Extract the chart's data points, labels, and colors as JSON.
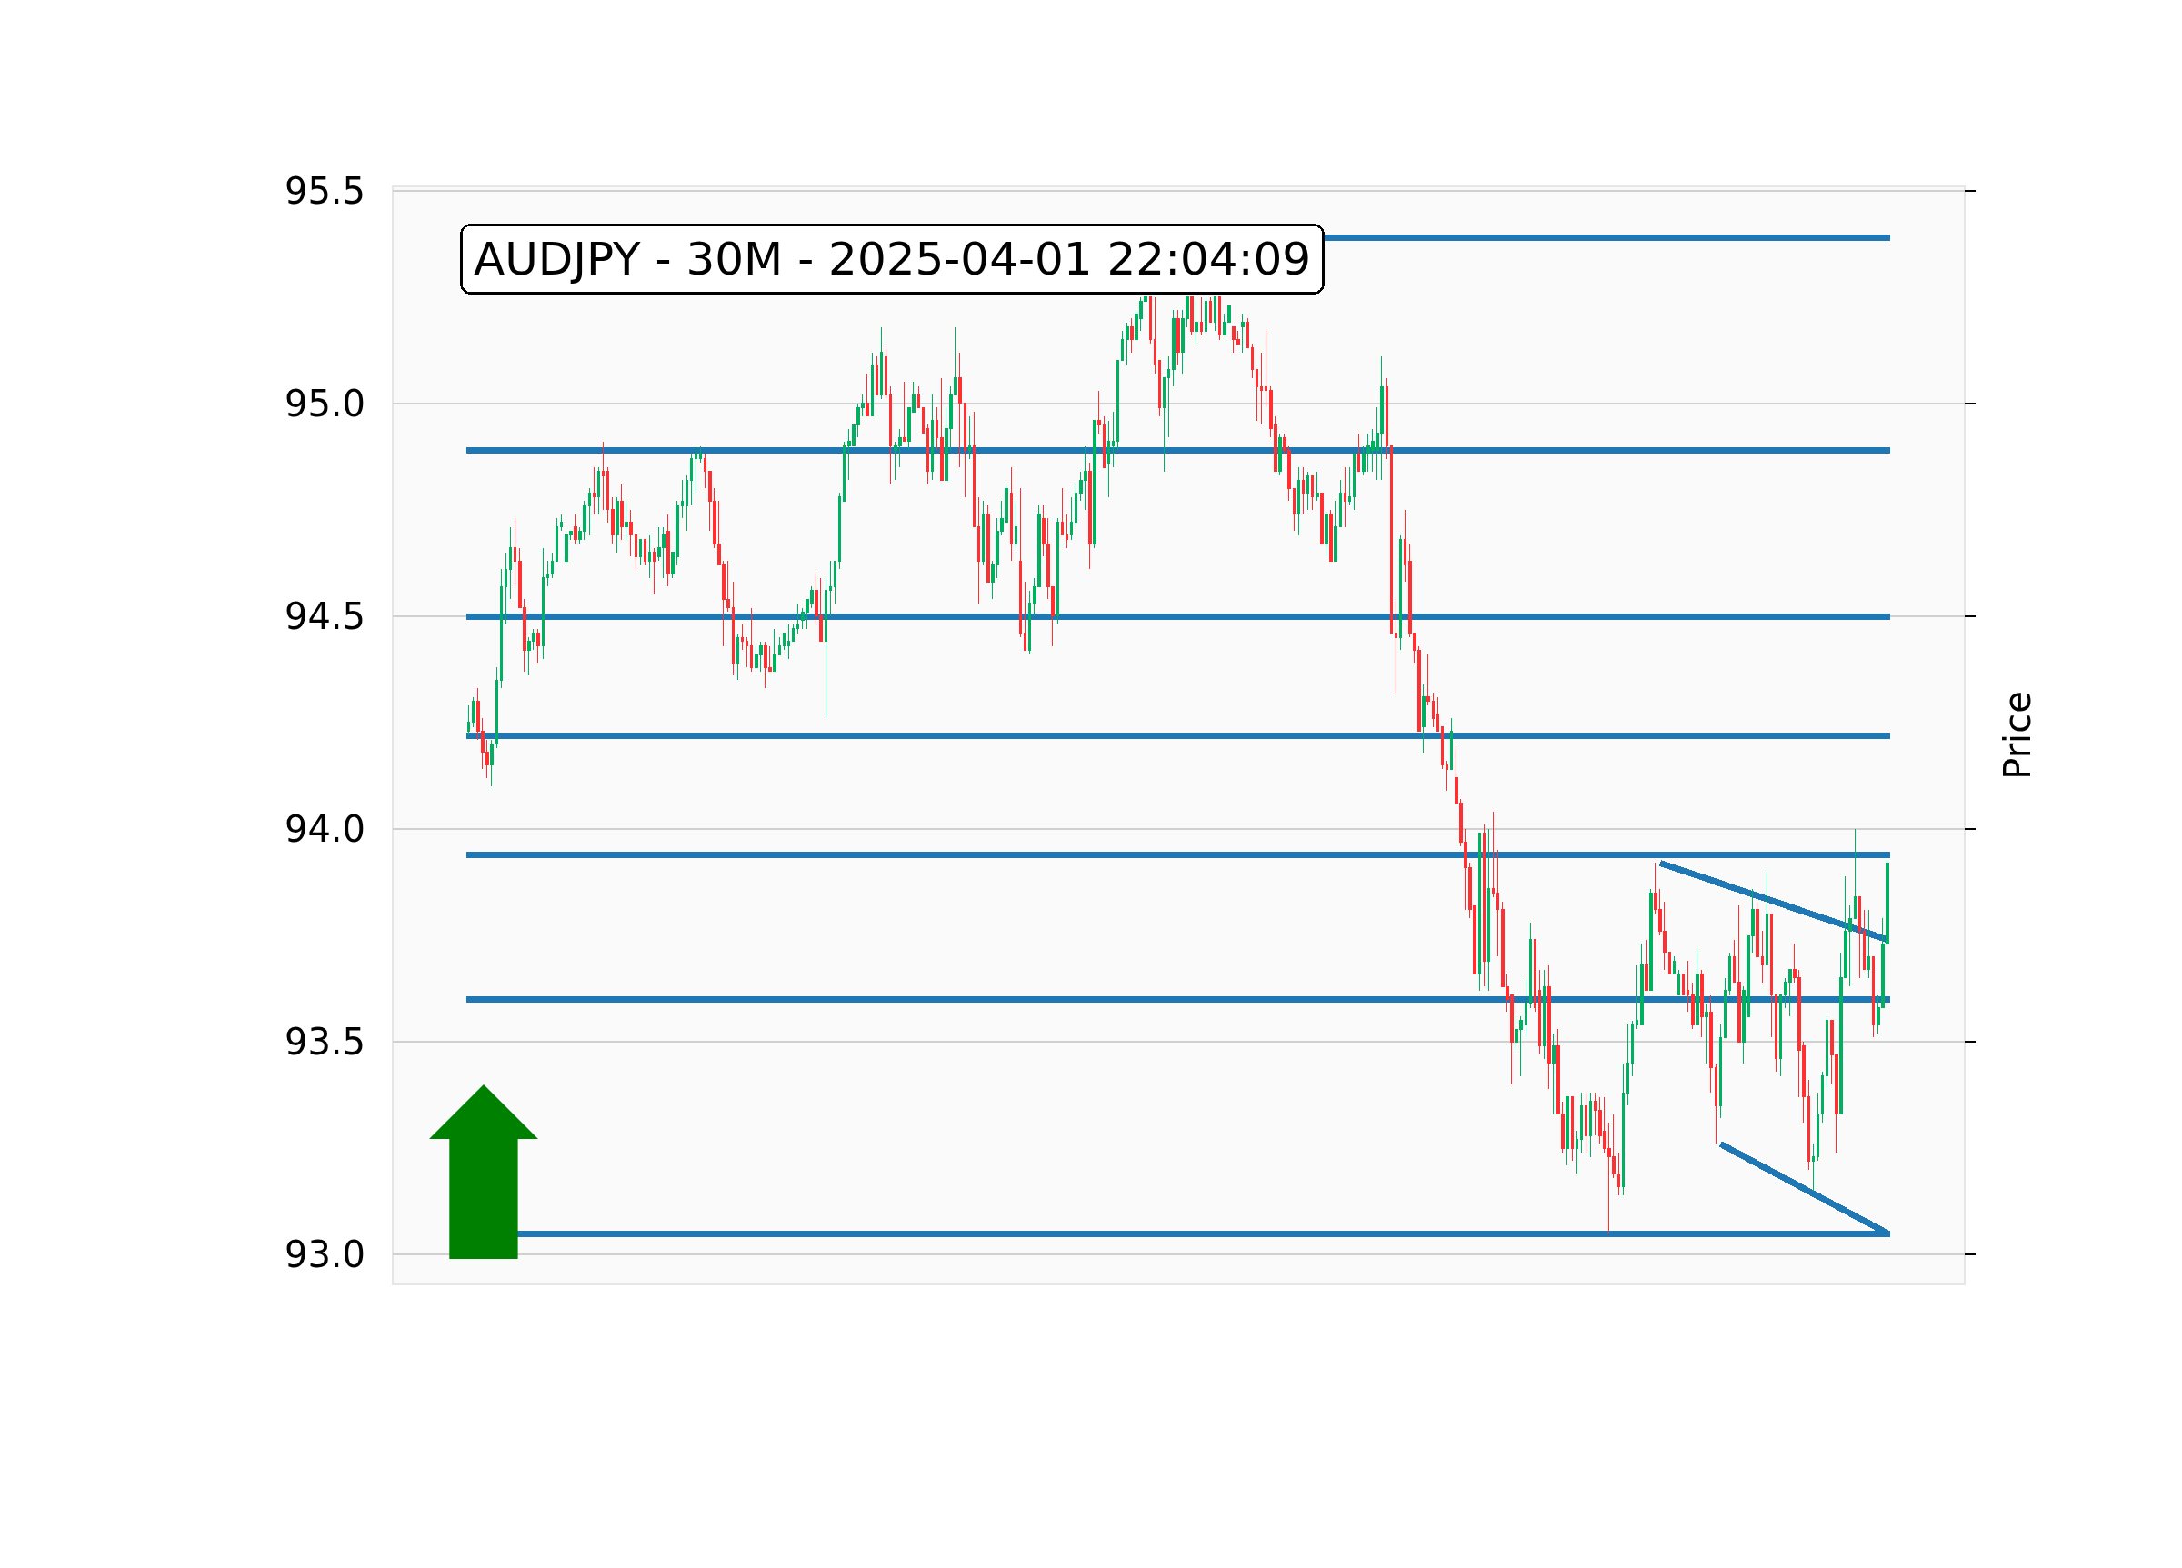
{
  "chart_data": {
    "type": "candlestick",
    "title": "AUDJPY - 30M - 2025-04-01 22:04:09",
    "ylabel": "Price",
    "categories": [
      null,
      null,
      null,
      null,
      null,
      null,
      null,
      null,
      null,
      null,
      null,
      null,
      null,
      null,
      null,
      null,
      null,
      null,
      null,
      null,
      null,
      null,
      null,
      null,
      null,
      null,
      null,
      null,
      null,
      null,
      null,
      null,
      null,
      null,
      null,
      null,
      null,
      null,
      null,
      null,
      null,
      null,
      null,
      null,
      null,
      null,
      null,
      null,
      null,
      null,
      null,
      null,
      null,
      null,
      null,
      null,
      null,
      null,
      null,
      null,
      null,
      null,
      null,
      null,
      null,
      null,
      null,
      null,
      null,
      null,
      null,
      null,
      null,
      null,
      null,
      null,
      null,
      null,
      null,
      null,
      null,
      null,
      null,
      null,
      null,
      null,
      null,
      null,
      null,
      null,
      null,
      null,
      null,
      null,
      null,
      null,
      null,
      null,
      null,
      null,
      null,
      null,
      null,
      null,
      null,
      null,
      null,
      null,
      null,
      null,
      null,
      null,
      null,
      null,
      null,
      null,
      null,
      null,
      null,
      null,
      null,
      null,
      null,
      null,
      null,
      null,
      null,
      null,
      null,
      null,
      null,
      null,
      null,
      null,
      null,
      null,
      null,
      null,
      null,
      null,
      null,
      null,
      null,
      null,
      null,
      null,
      null,
      null,
      null,
      null,
      null,
      null,
      null,
      null,
      null,
      null,
      null,
      null,
      null,
      null,
      null,
      null,
      null,
      null,
      null,
      null,
      null,
      null,
      null,
      null,
      null,
      null,
      null,
      null,
      null,
      null,
      null,
      null,
      null,
      null,
      null,
      null,
      null,
      null,
      null,
      null,
      null,
      null,
      null,
      null,
      null,
      null,
      null,
      null,
      null,
      null,
      null,
      null,
      null,
      null,
      null,
      null,
      null,
      null,
      null,
      null,
      null,
      null,
      null,
      null,
      null,
      null,
      null,
      null,
      null,
      null,
      null,
      null,
      null,
      null,
      null,
      null,
      null,
      null,
      null,
      null,
      null,
      null,
      null,
      null,
      null,
      null,
      null,
      null,
      null,
      null,
      null,
      null,
      null,
      null,
      null,
      null,
      null,
      null,
      null,
      null,
      null,
      null,
      null,
      null,
      null,
      null,
      null,
      null,
      null,
      null,
      null,
      null,
      null,
      null,
      null,
      null,
      null,
      null,
      null,
      null,
      null,
      null,
      null,
      null,
      null,
      null,
      null,
      null,
      null,
      null,
      null,
      null,
      null,
      null,
      null,
      null,
      null,
      null,
      null,
      null,
      null,
      null,
      null,
      null,
      null,
      null,
      null,
      null,
      null,
      null,
      null,
      null,
      null,
      null,
      null,
      null,
      null,
      null,
      null,
      null,
      null
    ],
    "ohlc": [
      [
        94.23,
        94.29,
        94.22,
        94.25
      ],
      [
        94.25,
        94.31,
        94.24,
        94.3
      ],
      [
        94.3,
        94.33,
        94.21,
        94.23
      ],
      [
        94.23,
        94.26,
        94.14,
        94.18
      ],
      [
        94.18,
        94.21,
        94.12,
        94.15
      ],
      [
        94.15,
        94.21,
        94.1,
        94.2
      ],
      [
        94.2,
        94.38,
        94.19,
        94.35
      ],
      [
        94.35,
        94.61,
        94.33,
        94.57
      ],
      [
        94.57,
        94.65,
        94.48,
        94.61
      ],
      [
        94.61,
        94.71,
        94.54,
        94.66
      ],
      [
        94.66,
        94.73,
        94.57,
        94.63
      ],
      [
        94.63,
        94.66,
        94.52,
        94.52
      ],
      [
        94.52,
        94.54,
        94.37,
        94.42
      ],
      [
        94.42,
        94.45,
        94.36,
        94.44
      ],
      [
        94.44,
        94.47,
        94.42,
        94.46
      ],
      [
        94.46,
        94.47,
        94.39,
        94.43
      ],
      [
        94.43,
        94.66,
        94.4,
        94.59
      ],
      [
        94.59,
        94.63,
        94.57,
        94.6
      ],
      [
        94.6,
        94.65,
        94.59,
        94.63
      ],
      [
        94.63,
        94.73,
        94.63,
        94.71
      ],
      [
        94.71,
        94.74,
        94.7,
        94.72
      ],
      [
        94.63,
        94.7,
        94.62,
        94.69
      ],
      [
        94.69,
        94.7,
        94.68,
        94.7
      ],
      [
        94.71,
        94.74,
        94.67,
        94.68
      ],
      [
        94.68,
        94.71,
        94.67,
        94.7
      ],
      [
        94.7,
        94.77,
        94.68,
        94.76
      ],
      [
        94.76,
        94.8,
        94.69,
        94.79
      ],
      [
        94.79,
        94.85,
        94.74,
        94.78
      ],
      [
        94.78,
        94.85,
        94.74,
        94.84
      ],
      [
        94.84,
        94.91,
        94.75,
        94.83
      ],
      [
        94.84,
        94.85,
        94.72,
        94.75
      ],
      [
        94.75,
        94.78,
        94.67,
        94.69
      ],
      [
        94.69,
        94.78,
        94.65,
        94.77
      ],
      [
        94.77,
        94.81,
        94.68,
        94.71
      ],
      [
        94.71,
        94.77,
        94.68,
        94.72
      ],
      [
        94.72,
        94.75,
        94.64,
        94.69
      ],
      [
        94.69,
        94.69,
        94.61,
        94.64
      ],
      [
        94.64,
        94.68,
        94.62,
        94.68
      ],
      [
        94.68,
        94.68,
        94.62,
        94.63
      ],
      [
        94.63,
        94.69,
        94.59,
        94.65
      ],
      [
        94.65,
        94.66,
        94.55,
        94.63
      ],
      [
        94.64,
        94.71,
        94.63,
        94.66
      ],
      [
        94.66,
        94.71,
        94.59,
        94.69
      ],
      [
        94.7,
        94.74,
        94.57,
        94.6
      ],
      [
        94.6,
        94.65,
        94.59,
        94.65
      ],
      [
        94.64,
        94.77,
        94.62,
        94.76
      ],
      [
        94.76,
        94.82,
        94.73,
        94.77
      ],
      [
        94.76,
        94.83,
        94.7,
        94.82
      ],
      [
        94.82,
        94.88,
        94.76,
        94.87
      ],
      [
        94.87,
        94.9,
        94.79,
        94.88
      ],
      [
        94.87,
        94.9,
        94.86,
        94.88
      ],
      [
        94.87,
        94.88,
        94.8,
        94.84
      ],
      [
        94.84,
        94.84,
        94.7,
        94.77
      ],
      [
        94.77,
        94.8,
        94.66,
        94.67
      ],
      [
        94.67,
        94.77,
        94.62,
        94.62
      ],
      [
        94.62,
        94.63,
        94.43,
        94.54
      ],
      [
        94.54,
        94.63,
        94.51,
        94.52
      ],
      [
        94.52,
        94.58,
        94.36,
        94.39
      ],
      [
        94.39,
        94.46,
        94.35,
        94.45
      ],
      [
        94.45,
        94.48,
        94.42,
        94.44
      ],
      [
        94.44,
        94.45,
        94.38,
        94.43
      ],
      [
        94.43,
        94.52,
        94.37,
        94.38
      ],
      [
        94.38,
        94.43,
        94.38,
        94.41
      ],
      [
        94.41,
        94.44,
        94.37,
        94.43
      ],
      [
        94.43,
        94.44,
        94.33,
        94.38
      ],
      [
        94.38,
        94.43,
        94.37,
        94.37
      ],
      [
        94.37,
        94.47,
        94.37,
        94.41
      ],
      [
        94.41,
        94.45,
        94.41,
        94.43
      ],
      [
        94.43,
        94.46,
        94.42,
        94.46
      ],
      [
        94.43,
        94.48,
        94.4,
        94.44
      ],
      [
        94.44,
        94.48,
        94.44,
        94.47
      ],
      [
        94.47,
        94.53,
        94.46,
        94.48
      ],
      [
        94.49,
        94.52,
        94.47,
        94.51
      ],
      [
        94.51,
        94.54,
        94.47,
        94.54
      ],
      [
        94.53,
        94.57,
        94.52,
        94.56
      ],
      [
        94.56,
        94.6,
        94.48,
        94.5
      ],
      [
        94.5,
        94.59,
        94.44,
        94.44
      ],
      [
        94.44,
        94.59,
        94.26,
        94.56
      ],
      [
        94.56,
        94.63,
        94.5,
        94.57
      ],
      [
        94.57,
        94.63,
        94.53,
        94.63
      ],
      [
        94.63,
        94.79,
        94.61,
        94.78
      ],
      [
        94.77,
        94.91,
        94.77,
        94.9
      ],
      [
        94.9,
        94.94,
        94.82,
        94.91
      ],
      [
        94.9,
        94.95,
        94.9,
        94.95
      ],
      [
        94.95,
        95.0,
        94.92,
        94.99
      ],
      [
        94.99,
        95.02,
        94.97,
        95.0
      ],
      [
        95.0,
        95.07,
        94.97,
        94.97
      ],
      [
        94.97,
        95.12,
        94.97,
        95.09
      ],
      [
        95.09,
        95.11,
        95.02,
        95.02
      ],
      [
        95.02,
        95.18,
        95.01,
        95.12
      ],
      [
        95.11,
        95.13,
        95.01,
        95.02
      ],
      [
        95.02,
        95.04,
        94.81,
        94.9
      ],
      [
        94.89,
        94.91,
        94.82,
        94.9
      ],
      [
        94.9,
        94.94,
        94.85,
        94.92
      ],
      [
        94.92,
        95.05,
        94.91,
        94.91
      ],
      [
        94.91,
        94.99,
        94.89,
        94.99
      ],
      [
        94.98,
        95.05,
        94.98,
        95.02
      ],
      [
        95.02,
        95.04,
        94.99,
        94.99
      ],
      [
        94.99,
        94.99,
        94.93,
        94.93
      ],
      [
        94.94,
        94.95,
        94.81,
        94.84
      ],
      [
        94.84,
        95.02,
        94.82,
        94.96
      ],
      [
        94.96,
        94.99,
        94.89,
        94.92
      ],
      [
        94.92,
        95.06,
        94.82,
        94.82
      ],
      [
        94.82,
        94.99,
        94.82,
        94.94
      ],
      [
        94.94,
        95.04,
        94.89,
        95.02
      ],
      [
        95.02,
        95.18,
        95.02,
        95.06
      ],
      [
        95.06,
        95.12,
        94.85,
        95.0
      ],
      [
        95.0,
        95.0,
        94.78,
        94.89
      ],
      [
        94.89,
        94.97,
        94.87,
        94.9
      ],
      [
        94.9,
        94.98,
        94.71,
        94.71
      ],
      [
        94.71,
        94.78,
        94.53,
        94.63
      ],
      [
        94.63,
        94.77,
        94.62,
        94.74
      ],
      [
        94.74,
        94.76,
        94.58,
        94.58
      ],
      [
        94.58,
        94.63,
        94.54,
        94.62
      ],
      [
        94.62,
        94.73,
        94.59,
        94.7
      ],
      [
        94.7,
        94.77,
        94.69,
        94.73
      ],
      [
        94.72,
        94.81,
        94.72,
        94.8
      ],
      [
        94.79,
        94.85,
        94.63,
        94.67
      ],
      [
        94.67,
        94.77,
        94.66,
        94.71
      ],
      [
        94.63,
        94.8,
        94.45,
        94.46
      ],
      [
        94.46,
        94.58,
        94.42,
        94.42
      ],
      [
        94.42,
        94.56,
        94.41,
        94.53
      ],
      [
        94.53,
        94.59,
        94.5,
        94.57
      ],
      [
        94.57,
        94.76,
        94.57,
        94.74
      ],
      [
        94.73,
        94.76,
        94.64,
        94.67
      ],
      [
        94.67,
        94.73,
        94.54,
        94.57
      ],
      [
        94.57,
        94.57,
        94.43,
        94.5
      ],
      [
        94.5,
        94.73,
        94.48,
        94.72
      ],
      [
        94.72,
        94.8,
        94.69,
        94.69
      ],
      [
        94.69,
        94.74,
        94.66,
        94.68
      ],
      [
        94.69,
        94.78,
        94.68,
        94.72
      ],
      [
        94.72,
        94.81,
        94.71,
        94.79
      ],
      [
        94.79,
        94.84,
        94.77,
        94.82
      ],
      [
        94.82,
        94.9,
        94.75,
        94.84
      ],
      [
        94.84,
        94.86,
        94.61,
        94.67
      ],
      [
        94.67,
        94.96,
        94.66,
        94.96
      ],
      [
        94.96,
        95.03,
        94.93,
        94.95
      ],
      [
        94.95,
        94.97,
        94.85,
        94.85
      ],
      [
        94.86,
        94.96,
        94.78,
        94.91
      ],
      [
        94.9,
        94.98,
        94.85,
        94.91
      ],
      [
        94.91,
        95.1,
        94.89,
        95.1
      ],
      [
        95.1,
        95.17,
        95.1,
        95.15
      ],
      [
        95.15,
        95.19,
        95.09,
        95.18
      ],
      [
        95.18,
        95.2,
        95.12,
        95.15
      ],
      [
        95.15,
        95.22,
        95.15,
        95.21
      ],
      [
        95.2,
        95.25,
        95.17,
        95.24
      ],
      [
        95.24,
        95.25,
        95.24,
        95.25
      ],
      [
        95.25,
        95.25,
        95.14,
        95.15
      ],
      [
        95.15,
        95.25,
        95.07,
        95.09
      ],
      [
        95.1,
        95.1,
        94.97,
        94.99
      ],
      [
        94.99,
        95.06,
        94.84,
        95.06
      ],
      [
        95.06,
        95.11,
        94.92,
        95.08
      ],
      [
        95.08,
        95.22,
        95.04,
        95.2
      ],
      [
        95.2,
        95.22,
        95.09,
        95.12
      ],
      [
        95.12,
        95.22,
        95.07,
        95.2
      ],
      [
        95.2,
        95.25,
        95.18,
        95.25
      ],
      [
        95.25,
        95.25,
        95.16,
        95.17
      ],
      [
        95.17,
        95.25,
        95.14,
        95.19
      ],
      [
        95.19,
        95.25,
        95.16,
        95.17
      ],
      [
        95.17,
        95.25,
        95.17,
        95.24
      ],
      [
        95.24,
        95.25,
        95.19,
        95.19
      ],
      [
        95.19,
        95.25,
        95.17,
        95.25
      ],
      [
        95.25,
        95.25,
        95.15,
        95.16
      ],
      [
        95.16,
        95.21,
        95.16,
        95.19
      ],
      [
        95.19,
        95.23,
        95.19,
        95.23
      ],
      [
        95.18,
        95.18,
        95.12,
        95.15
      ],
      [
        95.15,
        95.17,
        95.14,
        95.14
      ],
      [
        95.18,
        95.21,
        95.12,
        95.19
      ],
      [
        95.19,
        95.2,
        95.13,
        95.13
      ],
      [
        95.13,
        95.14,
        95.06,
        95.08
      ],
      [
        95.08,
        95.08,
        94.96,
        95.04
      ],
      [
        95.04,
        95.12,
        94.95,
        95.03
      ],
      [
        95.04,
        95.17,
        94.99,
        95.03
      ],
      [
        95.03,
        95.04,
        94.92,
        94.94
      ],
      [
        94.95,
        94.97,
        94.84,
        94.84
      ],
      [
        94.84,
        94.93,
        94.83,
        94.92
      ],
      [
        94.92,
        94.93,
        94.88,
        94.89
      ],
      [
        94.89,
        94.9,
        94.77,
        94.8
      ],
      [
        94.8,
        94.8,
        94.7,
        94.74
      ],
      [
        94.74,
        94.85,
        94.69,
        94.82
      ],
      [
        94.82,
        94.85,
        94.74,
        94.79
      ],
      [
        94.79,
        94.84,
        94.75,
        94.83
      ],
      [
        94.83,
        94.83,
        94.75,
        94.78
      ],
      [
        94.78,
        94.84,
        94.77,
        94.79
      ],
      [
        94.79,
        94.79,
        94.67,
        94.67
      ],
      [
        94.67,
        94.74,
        94.64,
        94.74
      ],
      [
        94.74,
        94.75,
        94.63,
        94.63
      ],
      [
        94.63,
        94.77,
        94.63,
        94.71
      ],
      [
        94.71,
        94.82,
        94.71,
        94.79
      ],
      [
        94.79,
        94.85,
        94.71,
        94.77
      ],
      [
        94.77,
        94.85,
        94.76,
        94.78
      ],
      [
        94.78,
        94.88,
        94.75,
        94.88
      ],
      [
        94.88,
        94.93,
        94.84,
        94.84
      ],
      [
        94.84,
        94.9,
        94.83,
        94.88
      ],
      [
        94.88,
        94.93,
        94.84,
        94.9
      ],
      [
        94.89,
        94.94,
        94.84,
        94.91
      ],
      [
        94.89,
        94.99,
        94.82,
        94.93
      ],
      [
        94.93,
        95.11,
        94.82,
        95.04
      ],
      [
        95.04,
        95.06,
        94.87,
        94.9
      ],
      [
        94.9,
        94.9,
        94.46,
        94.46
      ],
      [
        94.46,
        94.54,
        94.32,
        94.45
      ],
      [
        94.45,
        94.69,
        94.42,
        94.68
      ],
      [
        94.68,
        94.75,
        94.58,
        94.62
      ],
      [
        94.63,
        94.67,
        94.45,
        94.46
      ],
      [
        94.46,
        94.46,
        94.39,
        94.42
      ],
      [
        94.42,
        94.43,
        94.23,
        94.23
      ],
      [
        94.24,
        94.34,
        94.18,
        94.31
      ],
      [
        94.31,
        94.41,
        94.29,
        94.3
      ],
      [
        94.3,
        94.32,
        94.24,
        94.26
      ],
      [
        94.27,
        94.31,
        94.23,
        94.23
      ],
      [
        94.24,
        94.24,
        94.14,
        94.15
      ],
      [
        94.15,
        94.16,
        94.09,
        94.14
      ],
      [
        94.14,
        94.26,
        94.14,
        94.23
      ],
      [
        94.12,
        94.19,
        94.06,
        94.06
      ],
      [
        94.06,
        94.07,
        93.96,
        93.97
      ],
      [
        93.97,
        94.0,
        93.81,
        93.91
      ],
      [
        93.91,
        93.92,
        93.79,
        93.81
      ],
      [
        93.82,
        93.82,
        93.66,
        93.66
      ],
      [
        93.66,
        93.99,
        93.62,
        93.99
      ],
      [
        93.99,
        94.01,
        93.63,
        93.69
      ],
      [
        93.69,
        94.0,
        93.62,
        93.86
      ],
      [
        93.86,
        94.04,
        93.84,
        93.85
      ],
      [
        93.85,
        93.95,
        93.7,
        93.81
      ],
      [
        93.81,
        93.83,
        93.63,
        93.63
      ],
      [
        93.63,
        93.66,
        93.57,
        93.6
      ],
      [
        93.61,
        93.61,
        93.4,
        93.5
      ],
      [
        93.5,
        93.56,
        93.48,
        93.53
      ],
      [
        93.53,
        93.56,
        93.42,
        93.55
      ],
      [
        93.54,
        93.65,
        93.51,
        93.59
      ],
      [
        93.59,
        93.78,
        93.58,
        93.74
      ],
      [
        93.74,
        93.74,
        93.57,
        93.58
      ],
      [
        93.62,
        93.67,
        93.47,
        93.49
      ],
      [
        93.49,
        93.67,
        93.46,
        93.63
      ],
      [
        93.63,
        93.68,
        93.39,
        93.45
      ],
      [
        93.45,
        93.52,
        93.33,
        93.49
      ],
      [
        93.49,
        93.53,
        93.33,
        93.33
      ],
      [
        93.33,
        93.36,
        93.24,
        93.25
      ],
      [
        93.25,
        93.37,
        93.21,
        93.37
      ],
      [
        93.37,
        93.37,
        93.22,
        93.25
      ],
      [
        93.25,
        93.29,
        93.19,
        93.27
      ],
      [
        93.27,
        93.38,
        93.24,
        93.35
      ],
      [
        93.35,
        93.38,
        93.24,
        93.28
      ],
      [
        93.28,
        93.38,
        93.23,
        93.36
      ],
      [
        93.36,
        93.38,
        93.28,
        93.34
      ],
      [
        93.34,
        93.37,
        93.26,
        93.28
      ],
      [
        93.29,
        93.37,
        93.24,
        93.25
      ],
      [
        93.25,
        93.31,
        93.05,
        93.23
      ],
      [
        93.23,
        93.33,
        93.18,
        93.19
      ],
      [
        93.19,
        93.24,
        93.14,
        93.16
      ],
      [
        93.16,
        93.45,
        93.14,
        93.38
      ],
      [
        93.38,
        93.54,
        93.35,
        93.45
      ],
      [
        93.45,
        93.55,
        93.42,
        93.54
      ],
      [
        93.54,
        93.68,
        93.53,
        93.55
      ],
      [
        93.54,
        93.73,
        93.54,
        93.68
      ],
      [
        93.68,
        93.74,
        93.62,
        93.62
      ],
      [
        93.62,
        93.86,
        93.62,
        93.85
      ],
      [
        93.85,
        93.92,
        93.8,
        93.81
      ],
      [
        93.81,
        93.86,
        93.75,
        93.76
      ],
      [
        93.76,
        93.83,
        93.67,
        93.71
      ],
      [
        93.71,
        93.71,
        93.66,
        93.66
      ],
      [
        93.66,
        93.7,
        93.66,
        93.69
      ],
      [
        93.61,
        93.67,
        93.61,
        93.66
      ],
      [
        93.66,
        93.66,
        93.61,
        93.61
      ],
      [
        93.62,
        93.69,
        93.57,
        93.61
      ],
      [
        93.61,
        93.64,
        93.53,
        93.54
      ],
      [
        93.54,
        93.72,
        93.54,
        93.66
      ],
      [
        93.66,
        93.67,
        93.51,
        93.56
      ],
      [
        93.56,
        93.59,
        93.45,
        93.57
      ],
      [
        93.57,
        93.61,
        93.38,
        93.44
      ],
      [
        93.44,
        93.45,
        93.26,
        93.35
      ],
      [
        93.35,
        93.54,
        93.32,
        93.51
      ],
      [
        93.51,
        93.65,
        93.51,
        93.62
      ],
      [
        93.62,
        93.71,
        93.61,
        93.7
      ],
      [
        93.7,
        93.74,
        93.64,
        93.64
      ],
      [
        93.64,
        93.82,
        93.5,
        93.5
      ],
      [
        93.5,
        93.63,
        93.45,
        93.62
      ],
      [
        93.56,
        93.75,
        93.56,
        93.75
      ],
      [
        93.75,
        93.86,
        93.71,
        93.81
      ],
      [
        93.81,
        93.83,
        93.7,
        93.7
      ],
      [
        93.7,
        93.76,
        93.64,
        93.68
      ],
      [
        93.68,
        93.9,
        93.68,
        93.8
      ],
      [
        93.8,
        93.8,
        93.51,
        93.61
      ],
      [
        93.61,
        93.61,
        93.43,
        93.46
      ],
      [
        93.46,
        93.61,
        93.42,
        93.61
      ],
      [
        93.61,
        93.65,
        93.58,
        93.64
      ],
      [
        93.64,
        93.67,
        93.56,
        93.67
      ],
      [
        93.67,
        93.73,
        93.64,
        93.65
      ],
      [
        93.65,
        93.67,
        93.37,
        93.48
      ],
      [
        93.49,
        93.5,
        93.31,
        93.37
      ],
      [
        93.37,
        93.41,
        93.2,
        93.22
      ],
      [
        93.22,
        93.26,
        93.15,
        93.23
      ],
      [
        93.23,
        93.38,
        93.22,
        93.33
      ],
      [
        93.33,
        93.43,
        93.31,
        93.42
      ],
      [
        93.42,
        93.56,
        93.39,
        93.55
      ],
      [
        93.55,
        93.55,
        93.4,
        93.47
      ],
      [
        93.47,
        93.47,
        93.24,
        93.33
      ],
      [
        93.33,
        93.71,
        93.33,
        93.65
      ],
      [
        93.65,
        93.89,
        93.65,
        93.76
      ],
      [
        93.76,
        93.82,
        93.63,
        93.79
      ],
      [
        93.79,
        94.0,
        93.79,
        93.84
      ],
      [
        93.84,
        93.84,
        93.65,
        93.76
      ],
      [
        93.76,
        93.81,
        93.67,
        93.67
      ],
      [
        93.67,
        93.81,
        93.65,
        93.7
      ],
      [
        93.7,
        93.7,
        93.51,
        93.54
      ],
      [
        93.54,
        93.61,
        93.52,
        93.58
      ],
      [
        93.58,
        93.79,
        93.58,
        93.73
      ],
      [
        93.73,
        93.93,
        93.73,
        93.92
      ]
    ],
    "series": [
      {
        "type": "line",
        "color": "#1f77b4",
        "values": [
          null,
          null,
          null,
          null,
          null,
          null,
          null,
          null,
          null,
          null,
          null,
          null,
          null,
          null,
          null,
          null,
          null,
          null,
          null,
          null,
          null,
          null,
          null,
          null,
          null,
          null,
          null,
          null,
          null,
          null,
          null,
          null,
          null,
          null,
          null,
          null,
          null,
          null,
          null,
          null,
          null,
          null,
          null,
          null,
          null,
          null,
          null,
          null,
          null,
          null,
          null,
          null,
          null,
          null,
          null,
          null,
          null,
          null,
          null,
          null,
          null,
          null,
          null,
          null,
          null,
          null,
          null,
          null,
          null,
          null,
          null,
          null,
          null,
          null,
          null,
          null,
          null,
          null,
          null,
          null,
          null,
          null,
          null,
          null,
          null,
          null,
          null,
          null,
          null,
          null,
          null,
          null,
          null,
          null,
          null,
          null,
          null,
          null,
          null,
          null,
          null,
          null,
          null,
          null,
          null,
          null,
          null,
          null,
          null,
          null,
          null,
          null,
          null,
          null,
          null,
          null,
          null,
          null,
          null,
          null,
          null,
          null,
          null,
          null,
          null,
          null,
          null,
          null,
          null,
          null,
          null,
          null,
          null,
          null,
          null,
          null,
          null,
          null,
          null,
          null,
          null,
          null,
          null,
          null,
          null,
          null,
          null,
          null,
          null,
          null,
          null,
          null,
          null,
          null,
          null,
          null,
          null,
          null,
          null,
          null,
          null,
          null,
          null,
          null,
          null,
          null,
          null,
          null,
          null,
          null,
          null,
          null,
          null,
          null,
          null,
          null,
          null,
          null,
          null,
          null,
          null,
          null,
          null,
          null,
          null,
          null,
          null,
          null,
          null,
          null,
          null,
          null,
          null,
          null,
          null,
          null,
          null,
          null,
          null,
          null,
          null,
          null,
          null,
          null,
          null,
          null,
          null,
          null,
          null,
          null,
          null,
          null,
          null,
          null,
          null,
          null,
          null,
          null,
          null,
          null,
          null,
          null,
          null,
          null,
          null,
          null,
          null,
          null,
          null,
          null,
          null,
          null,
          null,
          null,
          null,
          null,
          null,
          null,
          null,
          null,
          null,
          null,
          null,
          null,
          null,
          null,
          null,
          null,
          null,
          null,
          null,
          null,
          null,
          null,
          null,
          null,
          null,
          93.92,
          null,
          null,
          null,
          null,
          null,
          null,
          null,
          null,
          null,
          null,
          null,
          null,
          null,
          null,
          null,
          null,
          null,
          null,
          null,
          null,
          null,
          null,
          null,
          null,
          null,
          null,
          null,
          null,
          null,
          null,
          null,
          null,
          null,
          null,
          null,
          null,
          null,
          null,
          null,
          null,
          null,
          null,
          null,
          null,
          null,
          null,
          null,
          null,
          93.74
        ]
      },
      {
        "type": "line",
        "color": "#1f77b4",
        "values": [
          null,
          null,
          null,
          null,
          null,
          null,
          null,
          null,
          null,
          null,
          null,
          null,
          null,
          null,
          null,
          null,
          null,
          null,
          null,
          null,
          null,
          null,
          null,
          null,
          null,
          null,
          null,
          null,
          null,
          null,
          null,
          null,
          null,
          null,
          null,
          null,
          null,
          null,
          null,
          null,
          null,
          null,
          null,
          null,
          null,
          null,
          null,
          null,
          null,
          null,
          null,
          null,
          null,
          null,
          null,
          null,
          null,
          null,
          null,
          null,
          null,
          null,
          null,
          null,
          null,
          null,
          null,
          null,
          null,
          null,
          null,
          null,
          null,
          null,
          null,
          null,
          null,
          null,
          null,
          null,
          null,
          null,
          null,
          null,
          null,
          null,
          null,
          null,
          null,
          null,
          null,
          null,
          null,
          null,
          null,
          null,
          null,
          null,
          null,
          null,
          null,
          null,
          null,
          null,
          null,
          null,
          null,
          null,
          null,
          null,
          null,
          null,
          null,
          null,
          null,
          null,
          null,
          null,
          null,
          null,
          null,
          null,
          null,
          null,
          null,
          null,
          null,
          null,
          null,
          null,
          null,
          null,
          null,
          null,
          null,
          null,
          null,
          null,
          null,
          null,
          null,
          null,
          null,
          null,
          null,
          null,
          null,
          null,
          null,
          null,
          null,
          null,
          null,
          null,
          null,
          null,
          null,
          null,
          null,
          null,
          null,
          null,
          null,
          null,
          null,
          null,
          null,
          null,
          null,
          null,
          null,
          null,
          null,
          null,
          null,
          null,
          null,
          null,
          null,
          null,
          null,
          null,
          null,
          null,
          null,
          null,
          null,
          null,
          null,
          null,
          null,
          null,
          null,
          null,
          null,
          null,
          null,
          null,
          null,
          null,
          null,
          null,
          null,
          null,
          null,
          null,
          null,
          null,
          null,
          null,
          null,
          null,
          null,
          null,
          null,
          null,
          null,
          null,
          null,
          null,
          null,
          null,
          null,
          null,
          null,
          null,
          null,
          null,
          null,
          null,
          null,
          null,
          null,
          null,
          null,
          null,
          null,
          null,
          null,
          null,
          null,
          null,
          null,
          null,
          null,
          null,
          null,
          null,
          null,
          null,
          null,
          null,
          null,
          null,
          null,
          null,
          null,
          null,
          null,
          null,
          null,
          null,
          null,
          null,
          null,
          null,
          null,
          null,
          null,
          null,
          93.26,
          null,
          null,
          null,
          null,
          null,
          null,
          null,
          null,
          null,
          null,
          null,
          null,
          null,
          null,
          null,
          null,
          null,
          null,
          null,
          null,
          null,
          null,
          null,
          null,
          null,
          null,
          null,
          null,
          null,
          null,
          null,
          null,
          null,
          null,
          null,
          93.05
        ]
      }
    ],
    "ref_lines": [
      {
        "axis": "y",
        "value": 95.39,
        "color": "#1f77b4"
      },
      {
        "axis": "y",
        "value": 94.89,
        "color": "#1f77b4"
      },
      {
        "axis": "y",
        "value": 94.5,
        "color": "#1f77b4"
      },
      {
        "axis": "y",
        "value": 94.22,
        "color": "#1f77b4"
      },
      {
        "axis": "y",
        "value": 93.94,
        "color": "#1f77b4"
      },
      {
        "axis": "y",
        "value": 93.6,
        "color": "#1f77b4"
      },
      {
        "axis": "y",
        "value": 93.05,
        "color": "#1f77b4"
      }
    ],
    "ylim": [
      92.93,
      95.51
    ],
    "yticks": [
      {
        "value": 93,
        "label": "93.0"
      },
      {
        "value": 93.5,
        "label": "93.5"
      },
      {
        "value": 94,
        "label": "94.0"
      },
      {
        "value": 94.5,
        "label": "94.5"
      },
      {
        "value": 95,
        "label": "95.0"
      },
      {
        "value": 95.5,
        "label": "95.5"
      }
    ],
    "grid": "y",
    "tick_labels": "y",
    "marker": "none"
  }
}
